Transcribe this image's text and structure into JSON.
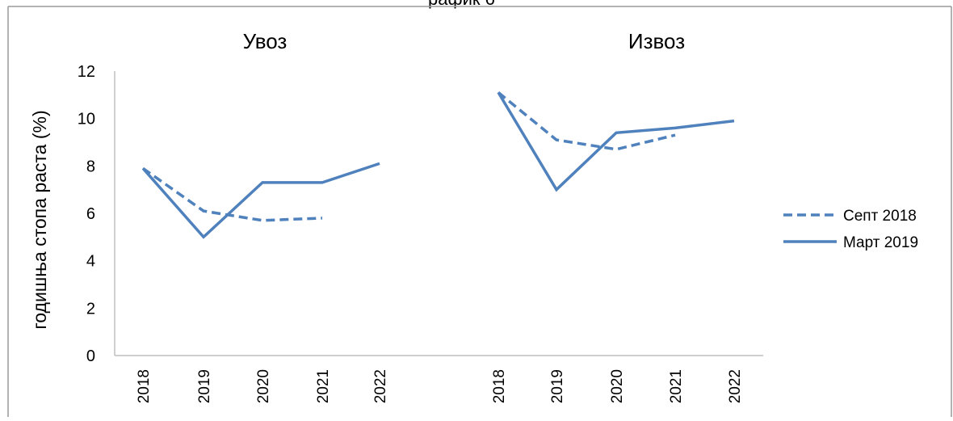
{
  "header_fragment": "рафик 6",
  "chart_data": {
    "type": "line",
    "ylabel": "годишња стопа раста (%)",
    "ylim": [
      0,
      12
    ],
    "yticks": [
      "0",
      "2",
      "4",
      "6",
      "8",
      "10",
      "12"
    ],
    "grid": false,
    "legend_position": "right",
    "colors": {
      "series": "#4F81BD",
      "axis": "#BFBFBF"
    },
    "legend": [
      {
        "name": "Септ 2018",
        "style": "dashed"
      },
      {
        "name": "Март 2019",
        "style": "solid"
      }
    ],
    "panels": [
      {
        "title": "Увоз",
        "x": [
          "2018",
          "2019",
          "2020",
          "2021",
          "2022"
        ],
        "series": [
          {
            "name": "Септ 2018",
            "style": "dashed",
            "values": [
              7.9,
              6.1,
              5.7,
              5.8,
              null
            ]
          },
          {
            "name": "Март 2019",
            "style": "solid",
            "values": [
              7.9,
              5.0,
              7.3,
              7.3,
              8.1
            ]
          }
        ]
      },
      {
        "title": "Извоз",
        "x": [
          "2018",
          "2019",
          "2020",
          "2021",
          "2022"
        ],
        "series": [
          {
            "name": "Септ 2018",
            "style": "dashed",
            "values": [
              11.1,
              9.1,
              8.7,
              9.3,
              null
            ]
          },
          {
            "name": "Март 2019",
            "style": "solid",
            "values": [
              11.1,
              7.0,
              9.4,
              9.6,
              9.9
            ]
          }
        ]
      }
    ]
  }
}
